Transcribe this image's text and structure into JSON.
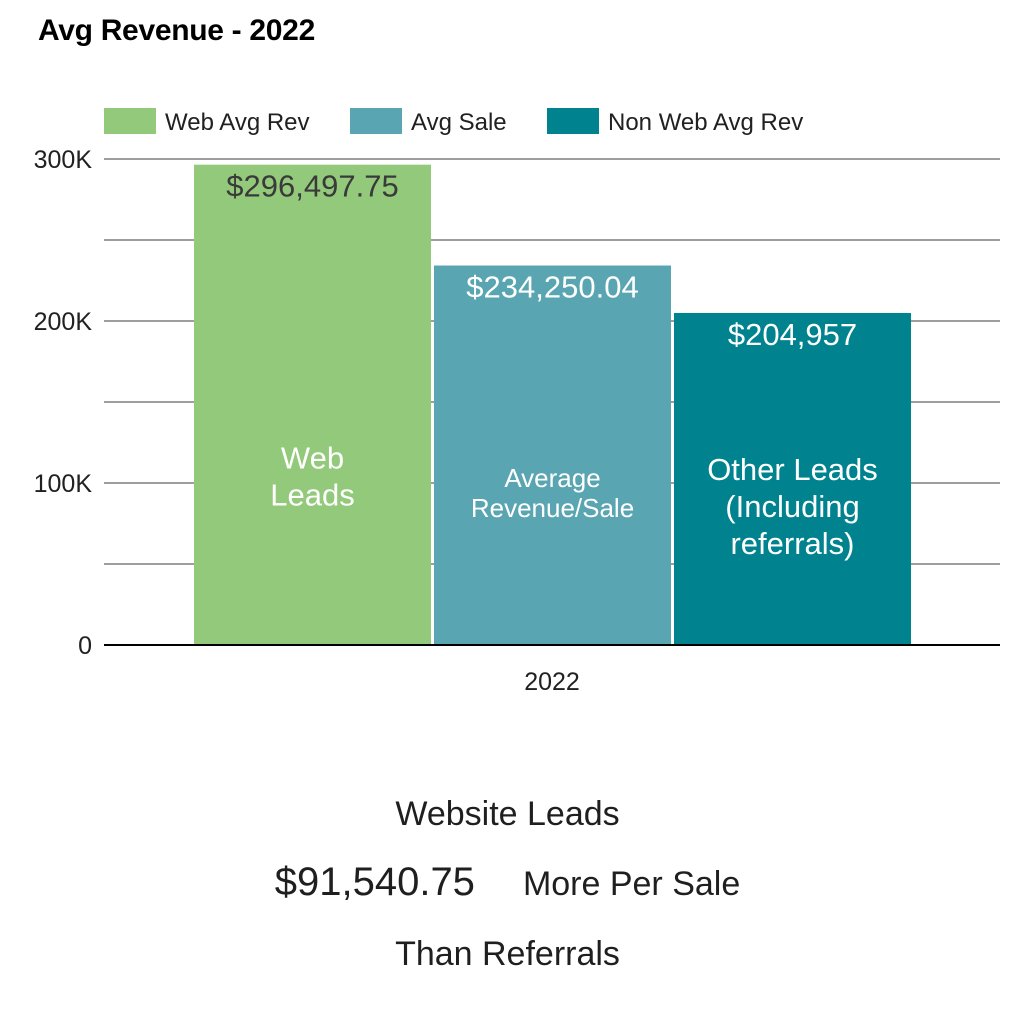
{
  "chart_data": {
    "type": "bar",
    "title": "Avg Revenue - 2022",
    "categories": [
      "2022"
    ],
    "series": [
      {
        "name": "Web Avg Rev",
        "values": [
          296497.75
        ],
        "color": "#93c97a",
        "value_label": "$296,497.75",
        "inner_label": [
          "Web",
          "Leads"
        ],
        "value_label_color": "#3a3a3a",
        "inner_label_color": "#ffffff"
      },
      {
        "name": "Avg Sale",
        "values": [
          234250.04
        ],
        "color": "#5aa5b2",
        "value_label": "$234,250.04",
        "inner_label": [
          "Average",
          "Revenue/Sale"
        ],
        "value_label_color": "#ffffff",
        "inner_label_color": "#ffffff"
      },
      {
        "name": "Non Web Avg Rev",
        "values": [
          204957
        ],
        "color": "#00838f",
        "value_label": "$204,957",
        "inner_label": [
          "Other Leads",
          "(Including",
          "referrals)"
        ],
        "value_label_color": "#ffffff",
        "inner_label_color": "#ffffff"
      }
    ],
    "ylim": [
      0,
      300000
    ],
    "yticks": [
      {
        "value": 0,
        "label": "0"
      },
      {
        "value": 100000,
        "label": "100K"
      },
      {
        "value": 200000,
        "label": "200K"
      },
      {
        "value": 300000,
        "label": "300K"
      }
    ],
    "minor_gridlines": [
      50000,
      150000,
      250000
    ],
    "xlabel": "",
    "ylabel": "",
    "grid": true,
    "legend": "top-left"
  },
  "footer": {
    "heading": "Website Leads",
    "amount": "$91,540.75",
    "amount_suffix": "More Per Sale",
    "trailer": "Than Referrals"
  }
}
